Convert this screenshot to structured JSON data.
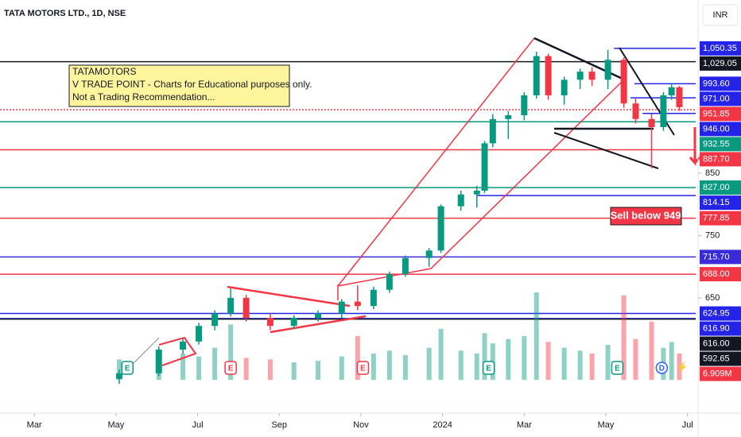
{
  "chart_data": {
    "type": "candlestick",
    "title": "TATA MOTORS LTD., 1D, NSE",
    "currency": "INR",
    "note": [
      "TATAMOTORS",
      "V TRADE POINT - Charts for Educational purposes only.",
      "Not a Trading Recommendation..."
    ],
    "signal": "Sell below 949",
    "up_color": "#089981",
    "down_color": "#f23645",
    "xlim": [
      1.16,
      18.2
    ],
    "xticks": [
      {
        "value": 2,
        "label": "Mar"
      },
      {
        "value": 4,
        "label": "May"
      },
      {
        "value": 6,
        "label": "Jul"
      },
      {
        "value": 8,
        "label": "Sep"
      },
      {
        "value": 10,
        "label": "Nov"
      },
      {
        "value": 12,
        "label": "2024"
      },
      {
        "value": 14,
        "label": "Mar"
      },
      {
        "value": 16,
        "label": "May"
      },
      {
        "value": 18,
        "label": "Jul"
      }
    ],
    "ylim": [
      465,
      1128
    ],
    "yticks": [
      650,
      750,
      850
    ],
    "vlim": [
      0,
      60
    ],
    "candles": [
      {
        "x": 4.08,
        "open": 520,
        "high": 535,
        "low": 512,
        "close": 529
      },
      {
        "x": 5.05,
        "open": 529,
        "high": 572,
        "low": 525,
        "close": 567
      },
      {
        "x": 5.64,
        "open": 567,
        "high": 585,
        "low": 560,
        "close": 580
      },
      {
        "x": 6.03,
        "open": 580,
        "high": 610,
        "low": 575,
        "close": 605
      },
      {
        "x": 6.42,
        "open": 605,
        "high": 630,
        "low": 598,
        "close": 625
      },
      {
        "x": 6.81,
        "open": 625,
        "high": 665,
        "low": 620,
        "close": 650
      },
      {
        "x": 7.19,
        "open": 650,
        "high": 655,
        "low": 612,
        "close": 618
      },
      {
        "x": 7.78,
        "open": 618,
        "high": 625,
        "low": 598,
        "close": 605
      },
      {
        "x": 8.36,
        "open": 605,
        "high": 622,
        "low": 600,
        "close": 618
      },
      {
        "x": 8.95,
        "open": 618,
        "high": 630,
        "low": 612,
        "close": 625
      },
      {
        "x": 9.53,
        "open": 625,
        "high": 648,
        "low": 618,
        "close": 644
      },
      {
        "x": 9.92,
        "open": 644,
        "high": 670,
        "low": 630,
        "close": 637
      },
      {
        "x": 10.31,
        "open": 637,
        "high": 668,
        "low": 632,
        "close": 663
      },
      {
        "x": 10.7,
        "open": 663,
        "high": 692,
        "low": 658,
        "close": 688
      },
      {
        "x": 11.09,
        "open": 688,
        "high": 718,
        "low": 684,
        "close": 714
      },
      {
        "x": 11.67,
        "open": 714,
        "high": 730,
        "low": 700,
        "close": 726
      },
      {
        "x": 11.96,
        "open": 726,
        "high": 800,
        "low": 722,
        "close": 797
      },
      {
        "x": 12.45,
        "open": 797,
        "high": 822,
        "low": 790,
        "close": 816
      },
      {
        "x": 12.84,
        "open": 816,
        "high": 830,
        "low": 795,
        "close": 822
      },
      {
        "x": 13.03,
        "open": 822,
        "high": 902,
        "low": 818,
        "close": 898
      },
      {
        "x": 13.23,
        "open": 898,
        "high": 945,
        "low": 892,
        "close": 937
      },
      {
        "x": 13.61,
        "open": 937,
        "high": 950,
        "low": 905,
        "close": 943
      },
      {
        "x": 14.0,
        "open": 943,
        "high": 980,
        "low": 935,
        "close": 975
      },
      {
        "x": 14.3,
        "open": 975,
        "high": 1045,
        "low": 970,
        "close": 1038
      },
      {
        "x": 14.59,
        "open": 1038,
        "high": 1042,
        "low": 968,
        "close": 975
      },
      {
        "x": 14.98,
        "open": 975,
        "high": 1005,
        "low": 960,
        "close": 1000
      },
      {
        "x": 15.37,
        "open": 1000,
        "high": 1018,
        "low": 985,
        "close": 1013
      },
      {
        "x": 15.66,
        "open": 1013,
        "high": 1020,
        "low": 990,
        "close": 1000
      },
      {
        "x": 16.05,
        "open": 1000,
        "high": 1048,
        "low": 985,
        "close": 1032
      },
      {
        "x": 16.44,
        "open": 1032,
        "high": 1036,
        "low": 955,
        "close": 962
      },
      {
        "x": 16.73,
        "open": 962,
        "high": 970,
        "low": 930,
        "close": 937
      },
      {
        "x": 17.12,
        "open": 937,
        "high": 945,
        "low": 858,
        "close": 924
      },
      {
        "x": 17.41,
        "open": 924,
        "high": 980,
        "low": 918,
        "close": 975
      },
      {
        "x": 17.61,
        "open": 975,
        "high": 995,
        "low": 968,
        "close": 988
      },
      {
        "x": 17.8,
        "open": 988,
        "high": 990,
        "low": 950,
        "close": 956
      }
    ],
    "volume": [
      14,
      12,
      18,
      16,
      22,
      38,
      15,
      14,
      12,
      13,
      16,
      30,
      18,
      20,
      17,
      22,
      35,
      20,
      18,
      32,
      25,
      28,
      30,
      60,
      26,
      22,
      20,
      18,
      24,
      58,
      28,
      40,
      22,
      26,
      18
    ],
    "volume_label": {
      "value": 6.909,
      "label": "6.909M",
      "color": "#f23645"
    },
    "levels": [
      {
        "value": 1050.35,
        "label": "1,050.35",
        "color": "#2424e8",
        "start": 16.2
      },
      {
        "value": 1029.05,
        "label": "1,029.05",
        "color": "#131722"
      },
      {
        "value": 993.6,
        "label": "993.60",
        "color": "#2424e8",
        "start": 16.7
      },
      {
        "value": 971,
        "label": "971.00",
        "color": "#2424e8",
        "start": 16.6
      },
      {
        "value": 951.85,
        "label": "951.85",
        "color": "#f23645"
      },
      {
        "value": 946,
        "label": "946.00",
        "color": "#2424e8",
        "start": 16.9
      },
      {
        "value": 932.55,
        "label": "932.55",
        "color": "#089981"
      },
      {
        "value": 887.7,
        "label": "887.70",
        "color": "#f23645"
      },
      {
        "value": 827,
        "label": "827.00",
        "color": "#089981"
      },
      {
        "value": 814.15,
        "label": "814.15",
        "color": "#2424e8",
        "start": 12.84
      },
      {
        "value": 777.85,
        "label": "777.85",
        "color": "#f23645"
      },
      {
        "value": 715.7,
        "label": "715.70",
        "color": "#3a2bd8"
      },
      {
        "value": 688,
        "label": "688.00",
        "color": "#f23645"
      },
      {
        "value": 624.95,
        "label": "624.95",
        "color": "#2424e8"
      },
      {
        "value": 616.9,
        "label": "616.90",
        "color": "#2424e8"
      },
      {
        "value": 616,
        "label": "616.00",
        "color": "#131722"
      },
      {
        "value": 592.65,
        "label": "592.65",
        "color": "#131722",
        "line": false
      }
    ],
    "events": [
      {
        "label": "E",
        "x": 4.28
      },
      {
        "label": "E",
        "x": 6.81
      },
      {
        "label": "E",
        "x": 10.05
      },
      {
        "label": "E",
        "x": 13.13
      },
      {
        "label": "E",
        "x": 16.28
      },
      {
        "label": "D",
        "x": 17.37
      }
    ]
  }
}
